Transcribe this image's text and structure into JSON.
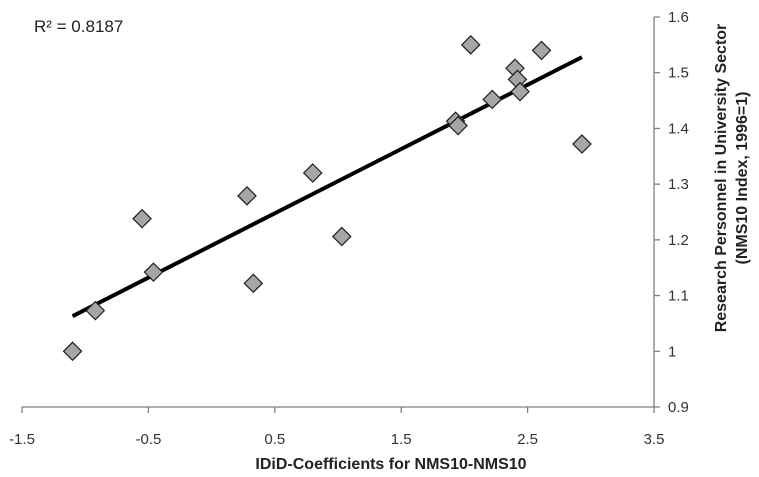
{
  "chart_data": {
    "type": "scatter",
    "title": "",
    "annotation": "R² = 0.8187",
    "xlabel": "IDiD-Coefficients for NMS10-NMS10",
    "ylabel_line1": "Research Personnel in University Sector",
    "ylabel_line2": "(NMS10 Index, 1996=1)",
    "xlim": [
      -1.5,
      3.5
    ],
    "ylim": [
      0.9,
      1.6
    ],
    "x_ticks": [
      "-1.5",
      "-0.5",
      "0.5",
      "1.5",
      "2.5",
      "3.5"
    ],
    "y_ticks": [
      "0.9",
      "1",
      "1.1",
      "1.2",
      "1.3",
      "1.4",
      "1.5",
      "1.6"
    ],
    "y_axis_position": "right",
    "grid": false,
    "legend": "none",
    "marker": "diamond",
    "marker_color": "#a6a6a6",
    "trendline": {
      "x": [
        -1.1,
        2.93
      ],
      "y": [
        1.063,
        1.528
      ],
      "color": "#000000"
    },
    "points": [
      {
        "x": -1.1,
        "y": 1.0
      },
      {
        "x": -0.92,
        "y": 1.073
      },
      {
        "x": -0.55,
        "y": 1.238
      },
      {
        "x": -0.46,
        "y": 1.142
      },
      {
        "x": 0.28,
        "y": 1.279
      },
      {
        "x": 0.33,
        "y": 1.122
      },
      {
        "x": 0.8,
        "y": 1.32
      },
      {
        "x": 1.03,
        "y": 1.206
      },
      {
        "x": 1.93,
        "y": 1.413
      },
      {
        "x": 1.95,
        "y": 1.405
      },
      {
        "x": 2.05,
        "y": 1.55
      },
      {
        "x": 2.22,
        "y": 1.452
      },
      {
        "x": 2.4,
        "y": 1.508
      },
      {
        "x": 2.42,
        "y": 1.488
      },
      {
        "x": 2.44,
        "y": 1.466
      },
      {
        "x": 2.61,
        "y": 1.54
      },
      {
        "x": 2.93,
        "y": 1.372
      }
    ]
  }
}
